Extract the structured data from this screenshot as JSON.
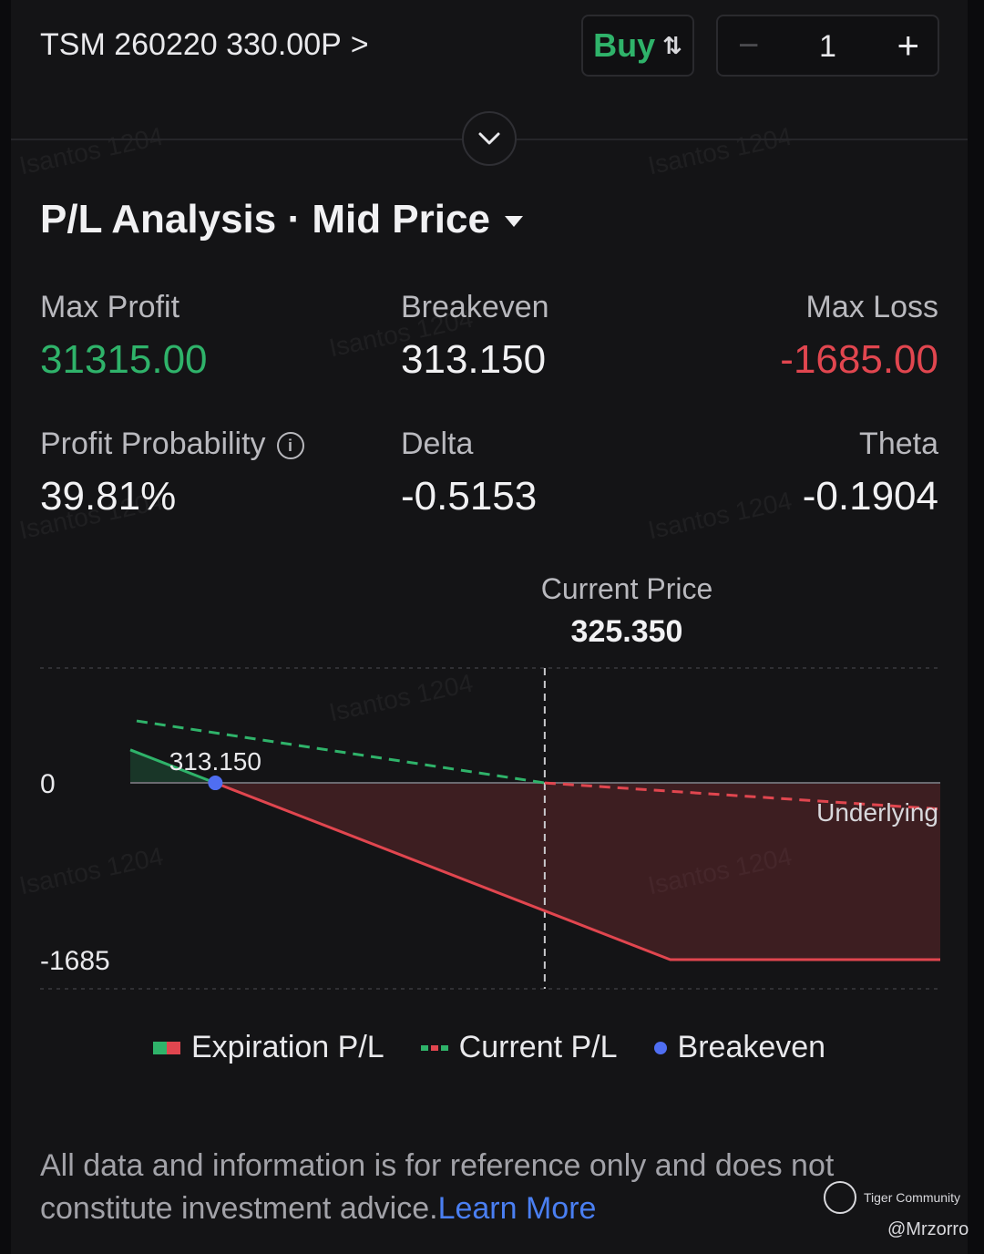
{
  "header": {
    "symbol": "TSM 260220 330.00P",
    "chevron": ">",
    "side_label": "Buy",
    "side_icon": "⇅",
    "quantity": "1",
    "minus_label": "−",
    "plus_label": "+"
  },
  "analysis": {
    "title": "P/L Analysis · Mid Price"
  },
  "stats": {
    "max_profit_label": "Max Profit",
    "max_profit": "31315.00",
    "breakeven_label": "Breakeven",
    "breakeven": "313.150",
    "max_loss_label": "Max Loss",
    "max_loss": "-1685.00",
    "profit_prob_label": "Profit Probability",
    "profit_prob": "39.81%",
    "delta_label": "Delta",
    "delta": "-0.5153",
    "theta_label": "Theta",
    "theta": "-0.1904"
  },
  "current_price": {
    "label": "Current Price",
    "value": "325.350"
  },
  "chart_data": {
    "type": "line",
    "y_ticks": [
      "0",
      "-1685"
    ],
    "breakeven_label": "313.150",
    "underlying_label": "Underlying",
    "x": [
      310.0,
      313.15,
      325.35,
      330.0,
      340.0
    ],
    "series": [
      {
        "name": "Expiration P/L",
        "x": [
          310.0,
          313.15,
          330.0,
          340.0
        ],
        "values": [
          315.0,
          0.0,
          -1685.0,
          -1685.0
        ]
      },
      {
        "name": "Current P/L",
        "x": [
          310.0,
          325.35,
          340.0
        ],
        "values": [
          600.0,
          0.0,
          -250.0
        ]
      }
    ],
    "breakeven": 313.15,
    "current_price": 325.35,
    "ylim": [
      -1685,
      600
    ],
    "xlim": [
      310.0,
      340.0
    ],
    "colors": {
      "profit": "#2fb36a",
      "loss": "#e1464f",
      "breakeven": "#4f6ef2"
    }
  },
  "legend": {
    "expiration": "Expiration P/L",
    "current": "Current P/L",
    "breakeven": "Breakeven"
  },
  "disclaimer": {
    "text": "All data and information is for reference only and does not constitute investment advice.",
    "link": "Learn More"
  },
  "branding": {
    "name": "Tiger Community",
    "handle": "@Mrzorro",
    "watermark": "Isantos 1204"
  }
}
